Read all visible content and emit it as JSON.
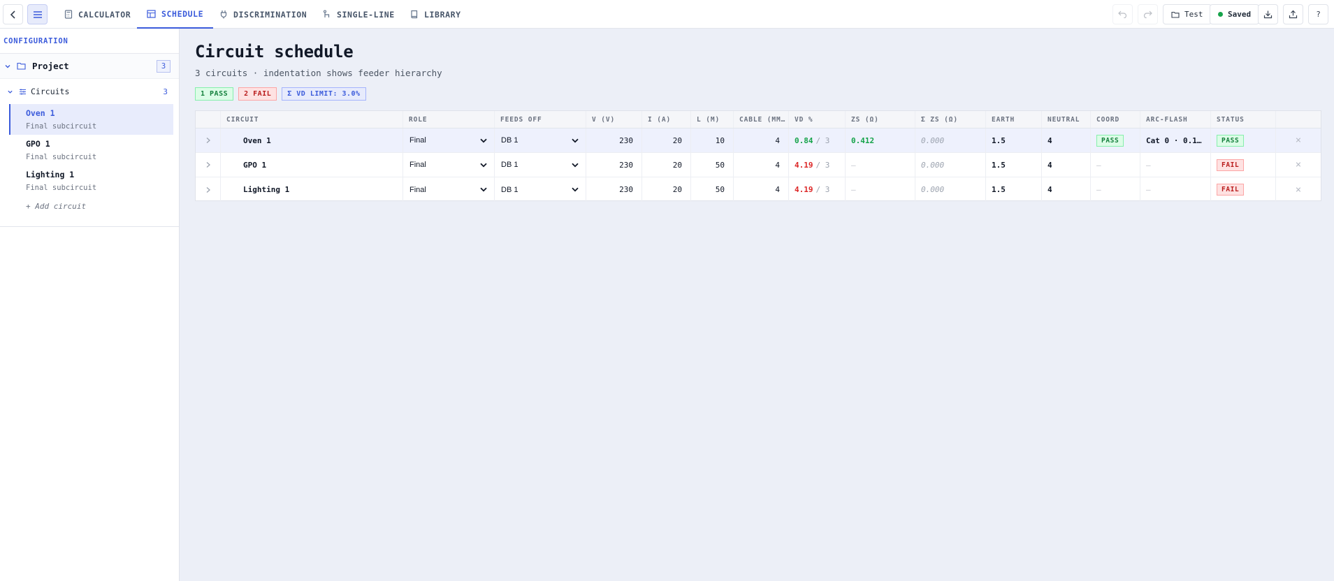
{
  "nav": {
    "tabs": [
      {
        "label": "CALCULATOR",
        "icon": "calculator-icon"
      },
      {
        "label": "SCHEDULE",
        "icon": "table-icon",
        "active": true
      },
      {
        "label": "DISCRIMINATION",
        "icon": "plug-icon"
      },
      {
        "label": "SINGLE-LINE",
        "icon": "single-line-icon"
      },
      {
        "label": "LIBRARY",
        "icon": "book-icon"
      }
    ],
    "project_button": "Test",
    "saved_label": "Saved",
    "help_label": "?"
  },
  "sidebar": {
    "header": "CONFIGURATION",
    "project_label": "Project",
    "project_count": "3",
    "circuits_label": "Circuits",
    "circuits_count": "3",
    "items": [
      {
        "name": "Oven 1",
        "sub": "Final subcircuit",
        "active": true
      },
      {
        "name": "GPO 1",
        "sub": "Final subcircuit"
      },
      {
        "name": "Lighting 1",
        "sub": "Final subcircuit"
      }
    ],
    "add_label": "+ Add circuit"
  },
  "main": {
    "title": "Circuit schedule",
    "subtitle": "3 circuits · indentation shows feeder hierarchy",
    "badges": {
      "pass": "1 PASS",
      "fail": "2 FAIL",
      "limit": "Σ VD LIMIT: 3.0%"
    }
  },
  "table": {
    "headers": {
      "circuit": "CIRCUIT",
      "role": "ROLE",
      "feeds_off": "FEEDS OFF",
      "v": "V (V)",
      "i": "I (A)",
      "l": "L (M)",
      "cable": "CABLE (MM…",
      "vd": "VD %",
      "zs": "ZS (Ω)",
      "szs": "Σ ZS (Ω)",
      "earth": "EARTH",
      "neutral": "NEUTRAL",
      "coord": "COORD",
      "arc": "ARC-FLASH",
      "status": "STATUS"
    },
    "rows": [
      {
        "circuit": "Oven 1",
        "role": "Final",
        "feeds_off": "DB 1",
        "v": "230",
        "i": "20",
        "l": "10",
        "cable": "4",
        "vd": "0.84",
        "vd_limit": "/ 3",
        "zs": "0.412",
        "szs": "0.000",
        "earth": "1.5",
        "neutral": "4",
        "coord": "PASS",
        "arc": "Cat 0 · 0.1 …",
        "status": "PASS",
        "delete": "×"
      },
      {
        "circuit": "GPO 1",
        "role": "Final",
        "feeds_off": "DB 1",
        "v": "230",
        "i": "20",
        "l": "50",
        "cable": "4",
        "vd": "4.19",
        "vd_limit": "/ 3",
        "zs": "—",
        "szs": "0.000",
        "earth": "1.5",
        "neutral": "4",
        "coord": "—",
        "arc": "—",
        "status": "FAIL",
        "delete": "×"
      },
      {
        "circuit": "Lighting 1",
        "role": "Final",
        "feeds_off": "DB 1",
        "v": "230",
        "i": "20",
        "l": "50",
        "cable": "4",
        "vd": "4.19",
        "vd_limit": "/ 3",
        "zs": "—",
        "szs": "0.000",
        "earth": "1.5",
        "neutral": "4",
        "coord": "—",
        "arc": "—",
        "status": "FAIL",
        "delete": "×"
      }
    ]
  },
  "colors": {
    "accent": "#3b5bdb",
    "pass": "#16a34a",
    "fail": "#dc2626",
    "background": "#eceff7"
  }
}
